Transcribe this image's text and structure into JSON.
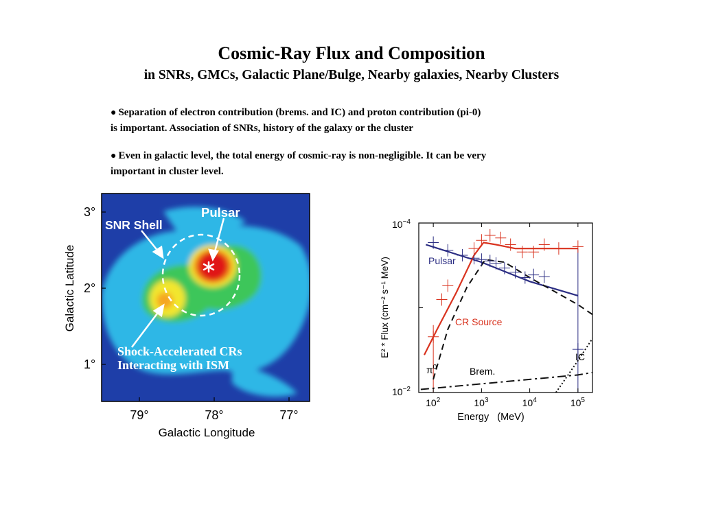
{
  "title": "Cosmic-Ray Flux and Composition",
  "subtitle": "in SNRs, GMCs, Galactic Plane/Bulge,  Nearby galaxies, Nearby Clusters",
  "bullets": [
    {
      "line1": "Separation of electron contribution (brems. and IC) and proton contribution (pi-0)",
      "line2": "is important.  Association of SNRs, history of the galaxy or the cluster"
    },
    {
      "line1": "Even in galactic level, the total energy of cosmic-ray is non-negligible.  It can be very",
      "line2": "important in cluster level."
    }
  ],
  "skymap": {
    "ylabel": "Galactic Latitude",
    "xlabel": "Galactic Longitude",
    "yticks": [
      "3°",
      "2°",
      "1°"
    ],
    "xticks": [
      "79°",
      "78°",
      "77°"
    ],
    "labels": {
      "snr_shell": "SNR Shell",
      "pulsar": "Pulsar",
      "shock_line1": "Shock-Accelerated CRs",
      "shock_line2": "Interacting with ISM"
    },
    "colors": {
      "background": "#1e3ea8",
      "cyan": "#2fb7e6",
      "green": "#3ec65a",
      "yellow": "#f2e62e",
      "red": "#e01818"
    }
  },
  "chart_data": {
    "type": "line",
    "xlabel": "Energy   (MeV)",
    "ylabel": "E² * Flux (cm⁻² s⁻¹ MeV)",
    "x_scale": "log",
    "y_scale": "log",
    "xlim": [
      50,
      200000
    ],
    "ylim": [
      0.01,
      0.0001
    ],
    "xticks": [
      {
        "base": "10",
        "exp": "2",
        "value": 100
      },
      {
        "base": "10",
        "exp": "3",
        "value": 1000
      },
      {
        "base": "10",
        "exp": "4",
        "value": 10000
      },
      {
        "base": "10",
        "exp": "5",
        "value": 100000
      }
    ],
    "yticks": [
      {
        "base": "10",
        "exp": "−4",
        "value": 0.0001
      },
      {
        "base": "10",
        "exp": "−2",
        "value": 0.01
      }
    ],
    "annotations": {
      "pulsar": "Pulsar",
      "cr_source": "CR Source",
      "pi0_sym": "π",
      "pi0_sup": "0",
      "brems": "Brem.",
      "ic": "IC"
    },
    "series": [
      {
        "name": "Pulsar",
        "color": "#2b2d83",
        "style": "solid",
        "x": [
          70,
          1000,
          10000,
          100000
        ],
        "y": [
          0.00018,
          0.00029,
          0.00049,
          0.00072
        ]
      },
      {
        "name": "CR Source",
        "color": "#d9331f",
        "style": "solid",
        "x": [
          65,
          120,
          300,
          700,
          1100,
          2000,
          5000,
          20000,
          100000
        ],
        "y": [
          0.0036,
          0.0018,
          0.00066,
          0.00024,
          0.00017,
          0.00018,
          0.0002,
          0.0002,
          0.0002
        ]
      },
      {
        "name": "π0",
        "color": "#111111",
        "style": "dash",
        "x": [
          100,
          200,
          500,
          1200,
          3000,
          10000,
          100000,
          200000
        ],
        "y": [
          0.007,
          0.0018,
          0.00057,
          0.00027,
          0.00029,
          0.00044,
          0.00092,
          0.0012
        ]
      },
      {
        "name": "Brem.",
        "color": "#111111",
        "style": "dashdot",
        "x": [
          55,
          100000,
          200000
        ],
        "y": [
          0.0092,
          0.0062,
          0.0058
        ]
      },
      {
        "name": "IC",
        "color": "#111111",
        "style": "dot",
        "x": [
          35000,
          100000,
          200000
        ],
        "y": [
          0.01,
          0.0042,
          0.0023
        ]
      }
    ],
    "data_points": {
      "blue": {
        "color": "#2b2d83",
        "x": [
          100,
          200,
          400,
          700,
          1000,
          1500,
          2000,
          3000,
          5000,
          8000,
          12000,
          20000,
          100000
        ],
        "y": [
          0.00017,
          0.00021,
          0.00024,
          0.00026,
          0.00027,
          0.00028,
          0.0003,
          0.00034,
          0.00038,
          0.00044,
          0.00041,
          0.00043,
          0.0031
        ]
      },
      "red": {
        "color": "#d9331f",
        "x": [
          100,
          150,
          200,
          700,
          1000,
          1500,
          2500,
          4000,
          7000,
          12000,
          20000,
          40000,
          100000
        ],
        "y": [
          0.0022,
          0.0008,
          0.00055,
          0.0002,
          0.00016,
          0.00014,
          0.00015,
          0.00018,
          0.00022,
          0.00022,
          0.00018,
          0.0002,
          0.00019
        ]
      }
    }
  }
}
